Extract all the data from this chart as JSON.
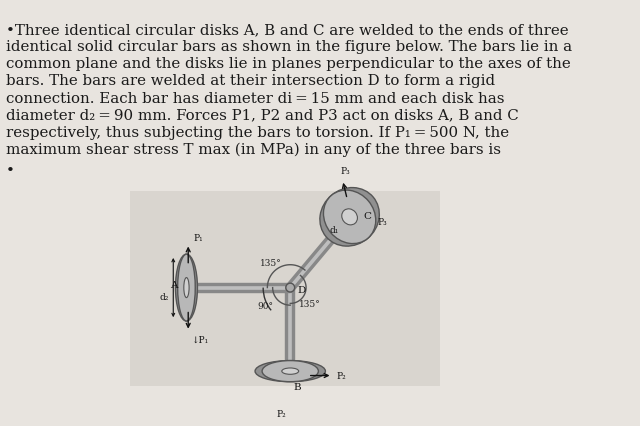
{
  "background_color": "#e8e4df",
  "text_color": "#1a1a1a",
  "title_lines": [
    "•Three identical circular disks A, B and C are welded to the ends of three",
    "identical solid circular bars as shown in the figure below. The bars lie in a",
    "common plane and the disks lie in planes perpendicular to the axes of the",
    "bars. The bars are welded at their intersection D to form a rigid",
    "connection. Each bar has diameter di = 15 mm and each disk has",
    "diameter d₂ = 90 mm. Forces P1, P2 and P3 act on disks A, B and C",
    "respectively, thus subjecting the bars to torsion. If P₁ = 500 N, the",
    "maximum shear stress T max (in MPa) in any of the three bars is"
  ],
  "bullet_dot": "•",
  "font_size_text": 10.8,
  "bar_gray": "#9a9a9a",
  "bar_highlight": "#d8d8d8",
  "disk_face": "#b0b0b0",
  "disk_dark": "#787878",
  "disk_inner": "#d0d0d0",
  "label_color": "#111111",
  "diagram_bg": "#ddd8d0"
}
